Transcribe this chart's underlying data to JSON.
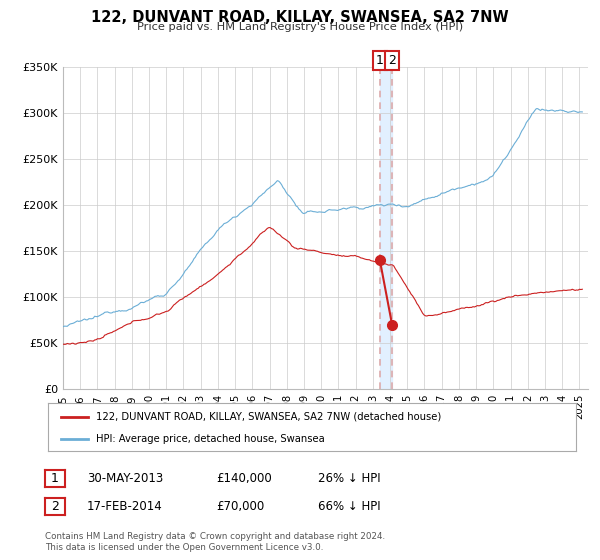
{
  "title": "122, DUNVANT ROAD, KILLAY, SWANSEA, SA2 7NW",
  "subtitle": "Price paid vs. HM Land Registry's House Price Index (HPI)",
  "ylim": [
    0,
    350000
  ],
  "xlim_start": 1995.0,
  "xlim_end": 2025.5,
  "yticks": [
    0,
    50000,
    100000,
    150000,
    200000,
    250000,
    300000,
    350000
  ],
  "ytick_labels": [
    "£0",
    "£50K",
    "£100K",
    "£150K",
    "£200K",
    "£250K",
    "£300K",
    "£350K"
  ],
  "xtick_years": [
    1995,
    1996,
    1997,
    1998,
    1999,
    2000,
    2001,
    2002,
    2003,
    2004,
    2005,
    2006,
    2007,
    2008,
    2009,
    2010,
    2011,
    2012,
    2013,
    2014,
    2015,
    2016,
    2017,
    2018,
    2019,
    2020,
    2021,
    2022,
    2023,
    2024,
    2025
  ],
  "hpi_color": "#6baed6",
  "price_color": "#cb2020",
  "shade_color": "#ddeeff",
  "dashed_color": "#ddaaaa",
  "drop_line_color": "#cc2020",
  "background_color": "#ffffff",
  "grid_color": "#cccccc",
  "legend_label_price": "122, DUNVANT ROAD, KILLAY, SWANSEA, SA2 7NW (detached house)",
  "legend_label_hpi": "HPI: Average price, detached house, Swansea",
  "sale1_date": 2013.41,
  "sale1_price": 140000,
  "sale2_date": 2014.12,
  "sale2_price": 70000,
  "footer1": "Contains HM Land Registry data © Crown copyright and database right 2024.",
  "footer2": "This data is licensed under the Open Government Licence v3.0.",
  "table_row1": [
    "1",
    "30-MAY-2013",
    "£140,000",
    "26% ↓ HPI"
  ],
  "table_row2": [
    "2",
    "17-FEB-2014",
    "£70,000",
    "66% ↓ HPI"
  ]
}
